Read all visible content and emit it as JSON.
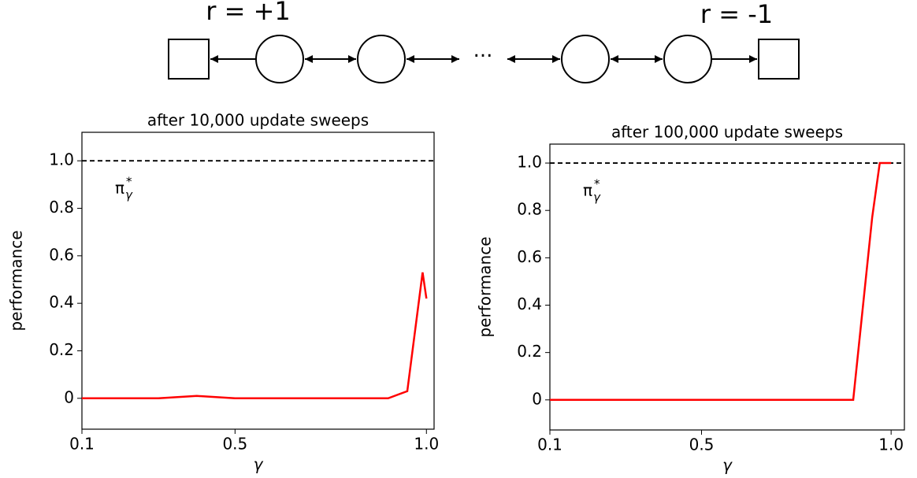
{
  "diagram": {
    "left_label": "r = +1",
    "right_label": "r = -1",
    "ellipsis": "···"
  },
  "chart_data": [
    {
      "type": "line",
      "title": "after 10,000 update sweeps",
      "xlabel": "γ",
      "ylabel": "performance",
      "annotation": {
        "base": "π",
        "sup": "*",
        "sub": "γ"
      },
      "hline": 1,
      "x": [
        0.1,
        0.2,
        0.3,
        0.4,
        0.5,
        0.6,
        0.7,
        0.8,
        0.9,
        0.95,
        0.99,
        1.0
      ],
      "values": [
        0,
        0,
        0,
        0.01,
        0,
        0,
        0,
        0,
        0,
        0.03,
        0.53,
        0.42
      ],
      "color": "#ff0000",
      "xlim": [
        0.1,
        1.02
      ],
      "xticks": [
        0.1,
        0.5,
        {
          "value": 1,
          "label": "1.0"
        }
      ],
      "ylim": [
        -0.13,
        1.12
      ],
      "yticks": [
        0,
        0.2,
        0.4,
        0.6,
        0.8,
        {
          "value": 1,
          "label": "1.0"
        }
      ]
    },
    {
      "type": "line",
      "title": "after 100,000 update sweeps",
      "xlabel": "γ",
      "ylabel": "performance",
      "annotation": {
        "base": "π",
        "sup": "*",
        "sub": "γ"
      },
      "hline": 1,
      "x": [
        0.1,
        0.2,
        0.3,
        0.4,
        0.5,
        0.6,
        0.7,
        0.8,
        0.9,
        0.95,
        0.97,
        1.0
      ],
      "values": [
        0,
        0,
        0,
        0,
        0,
        0,
        0,
        0,
        0,
        0.77,
        1,
        1
      ],
      "color": "#ff0000",
      "xlim": [
        0.1,
        1.035
      ],
      "xticks": [
        0.1,
        0.5,
        {
          "value": 1,
          "label": "1.0"
        }
      ],
      "ylim": [
        -0.127,
        1.08
      ],
      "yticks": [
        0,
        0.2,
        0.4,
        0.6,
        0.8,
        {
          "value": 1,
          "label": "1.0"
        }
      ]
    }
  ]
}
